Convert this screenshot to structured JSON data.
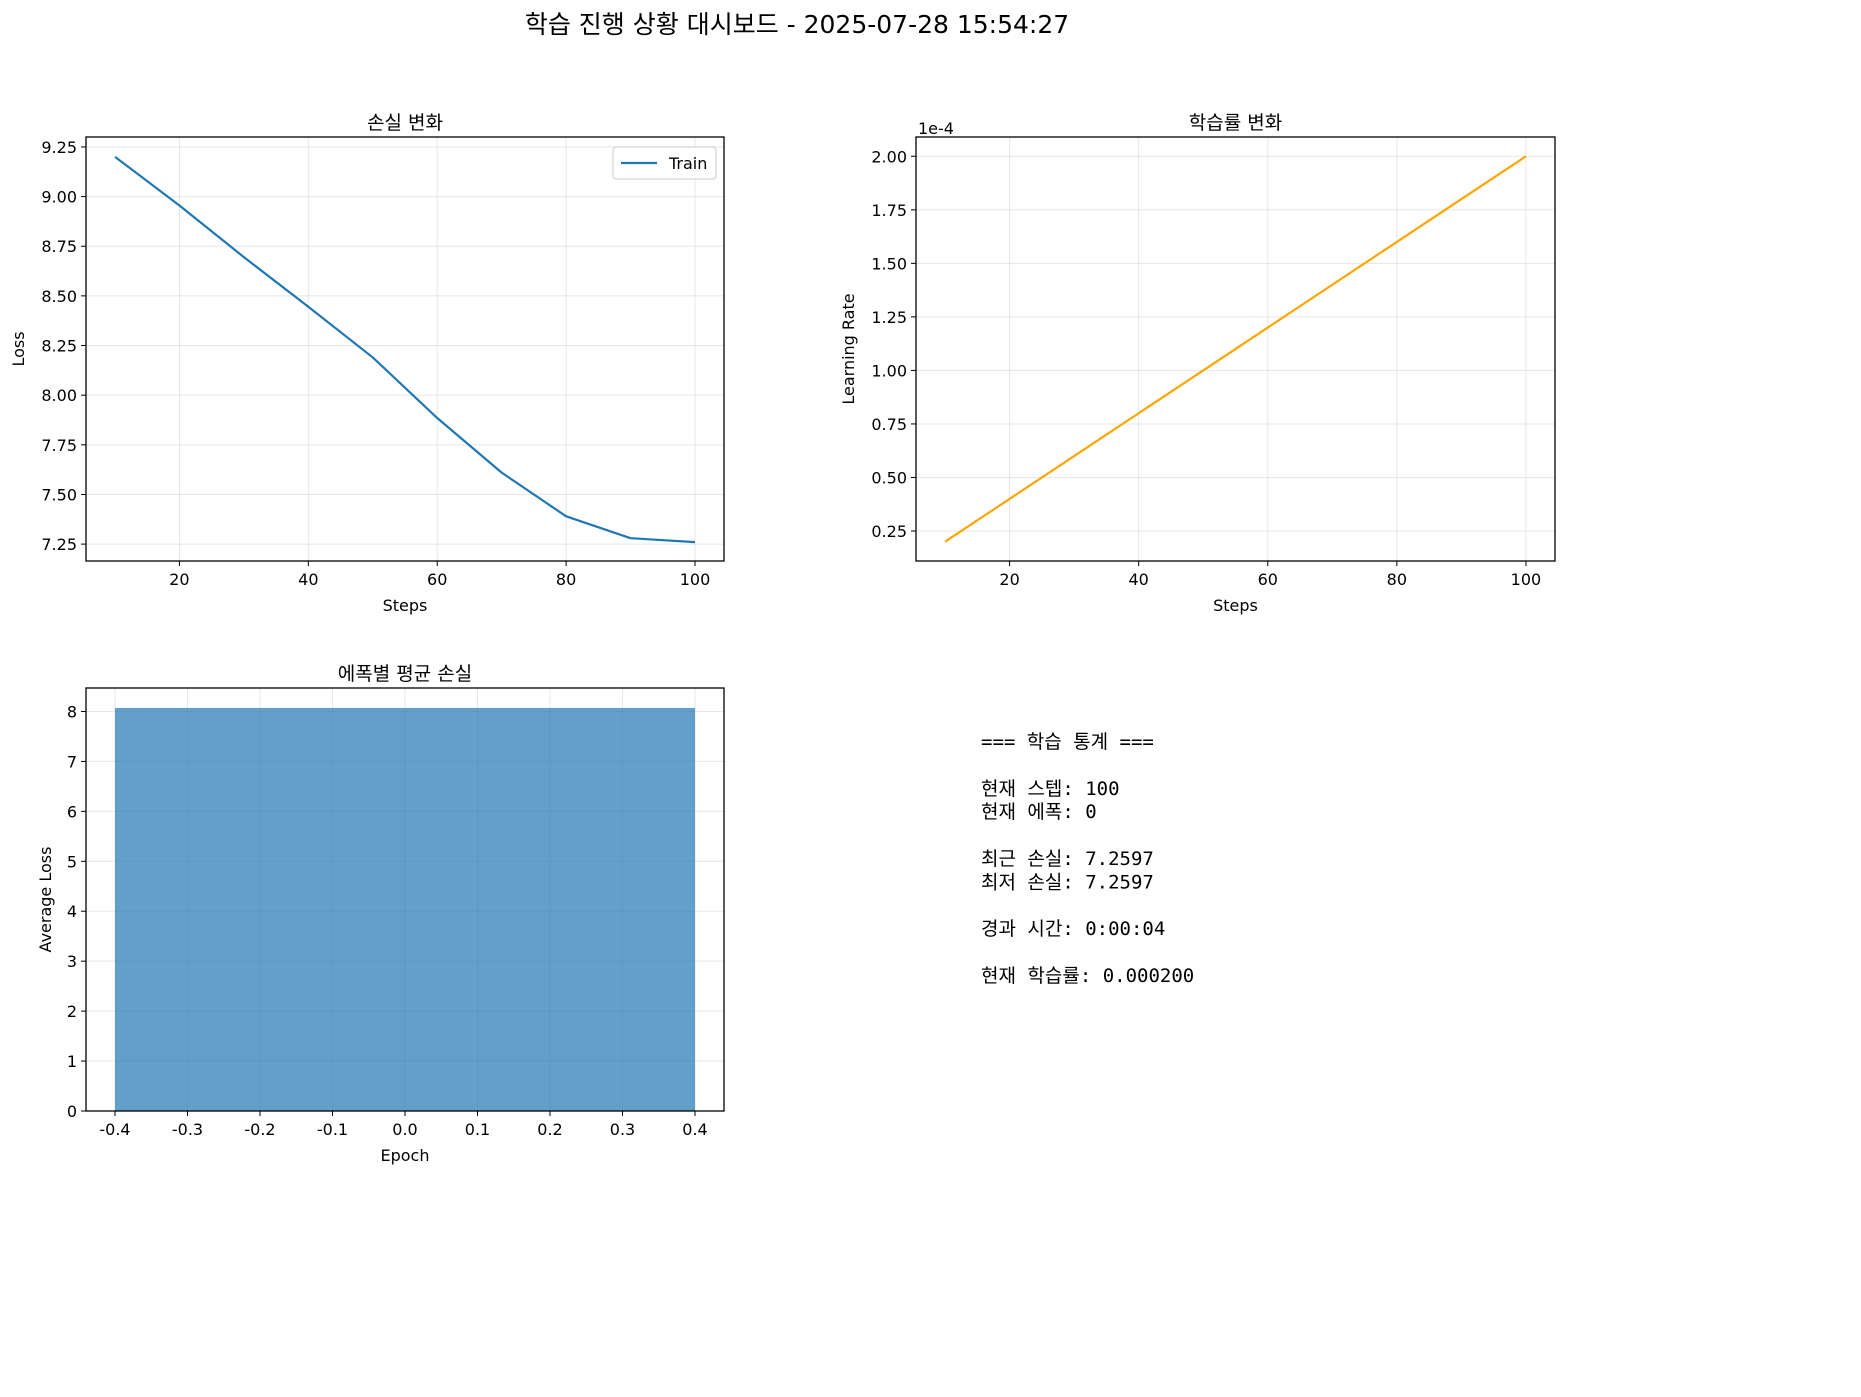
{
  "suptitle": "학습 진행 상황 대시보드 - 2025-07-28 15:54:27",
  "chart_data": [
    {
      "id": "loss",
      "type": "line",
      "title": "손실 변화",
      "xlabel": "Steps",
      "ylabel": "Loss",
      "xlim": [
        5.5,
        104.5
      ],
      "ylim": [
        7.165,
        9.3
      ],
      "xticks": [
        20,
        40,
        60,
        80,
        100
      ],
      "xtick_labels": [
        "20",
        "40",
        "60",
        "80",
        "100"
      ],
      "yticks": [
        7.25,
        7.5,
        7.75,
        8.0,
        8.25,
        8.5,
        8.75,
        9.0,
        9.25
      ],
      "ytick_labels": [
        "7.25",
        "7.50",
        "7.75",
        "8.00",
        "8.25",
        "8.50",
        "8.75",
        "9.00",
        "9.25"
      ],
      "grid": true,
      "legend_position": "upper-right",
      "series": [
        {
          "name": "Train",
          "color": "#1f77b4",
          "x": [
            10,
            20,
            30,
            40,
            50,
            60,
            70,
            80,
            90,
            100
          ],
          "y": [
            9.2,
            8.955,
            8.695,
            8.445,
            8.19,
            7.885,
            7.61,
            7.39,
            7.28,
            7.26
          ]
        }
      ]
    },
    {
      "id": "lr",
      "type": "line",
      "title": "학습률 변화",
      "xlabel": "Steps",
      "ylabel": "Learning Rate",
      "offset_label": "1e-4",
      "xlim": [
        5.5,
        104.5
      ],
      "ylim": [
        0.11,
        2.09
      ],
      "xticks": [
        20,
        40,
        60,
        80,
        100
      ],
      "xtick_labels": [
        "20",
        "40",
        "60",
        "80",
        "100"
      ],
      "yticks": [
        0.25,
        0.5,
        0.75,
        1.0,
        1.25,
        1.5,
        1.75,
        2.0
      ],
      "ytick_labels": [
        "0.25",
        "0.50",
        "0.75",
        "1.00",
        "1.25",
        "1.50",
        "1.75",
        "2.00"
      ],
      "grid": true,
      "series": [
        {
          "color": "#ffa500",
          "x": [
            10,
            20,
            30,
            40,
            50,
            60,
            70,
            80,
            90,
            100
          ],
          "y": [
            0.2,
            0.4,
            0.6,
            0.8,
            1.0,
            1.2,
            1.4,
            1.6,
            1.8,
            2.0
          ]
        }
      ]
    },
    {
      "id": "epoch",
      "type": "bar",
      "title": "에폭별 평균 손실",
      "xlabel": "Epoch",
      "ylabel": "Average Loss",
      "xlim": [
        -0.44,
        0.44
      ],
      "ylim": [
        0,
        8.47
      ],
      "xticks": [
        -0.4,
        -0.3,
        -0.2,
        -0.1,
        0.0,
        0.1,
        0.2,
        0.3,
        0.4
      ],
      "xtick_labels": [
        "-0.4",
        "-0.3",
        "-0.2",
        "-0.1",
        "0.0",
        "0.1",
        "0.2",
        "0.3",
        "0.4"
      ],
      "yticks": [
        0,
        1,
        2,
        3,
        4,
        5,
        6,
        7,
        8
      ],
      "ytick_labels": [
        "0",
        "1",
        "2",
        "3",
        "4",
        "5",
        "6",
        "7",
        "8"
      ],
      "grid": true,
      "bar_width": 0.8,
      "color": "#1f77b4",
      "categories": [
        0
      ],
      "values": [
        8.07
      ]
    }
  ],
  "stats_text": [
    "=== 학습 통계 ===",
    "",
    "현재 스텝: 100",
    "현재 에폭: 0",
    "",
    "최근 손실: 7.2597",
    "최저 손실: 7.2597",
    "",
    "경과 시간: 0:00:04",
    "",
    "현재 학습률: 0.000200"
  ]
}
